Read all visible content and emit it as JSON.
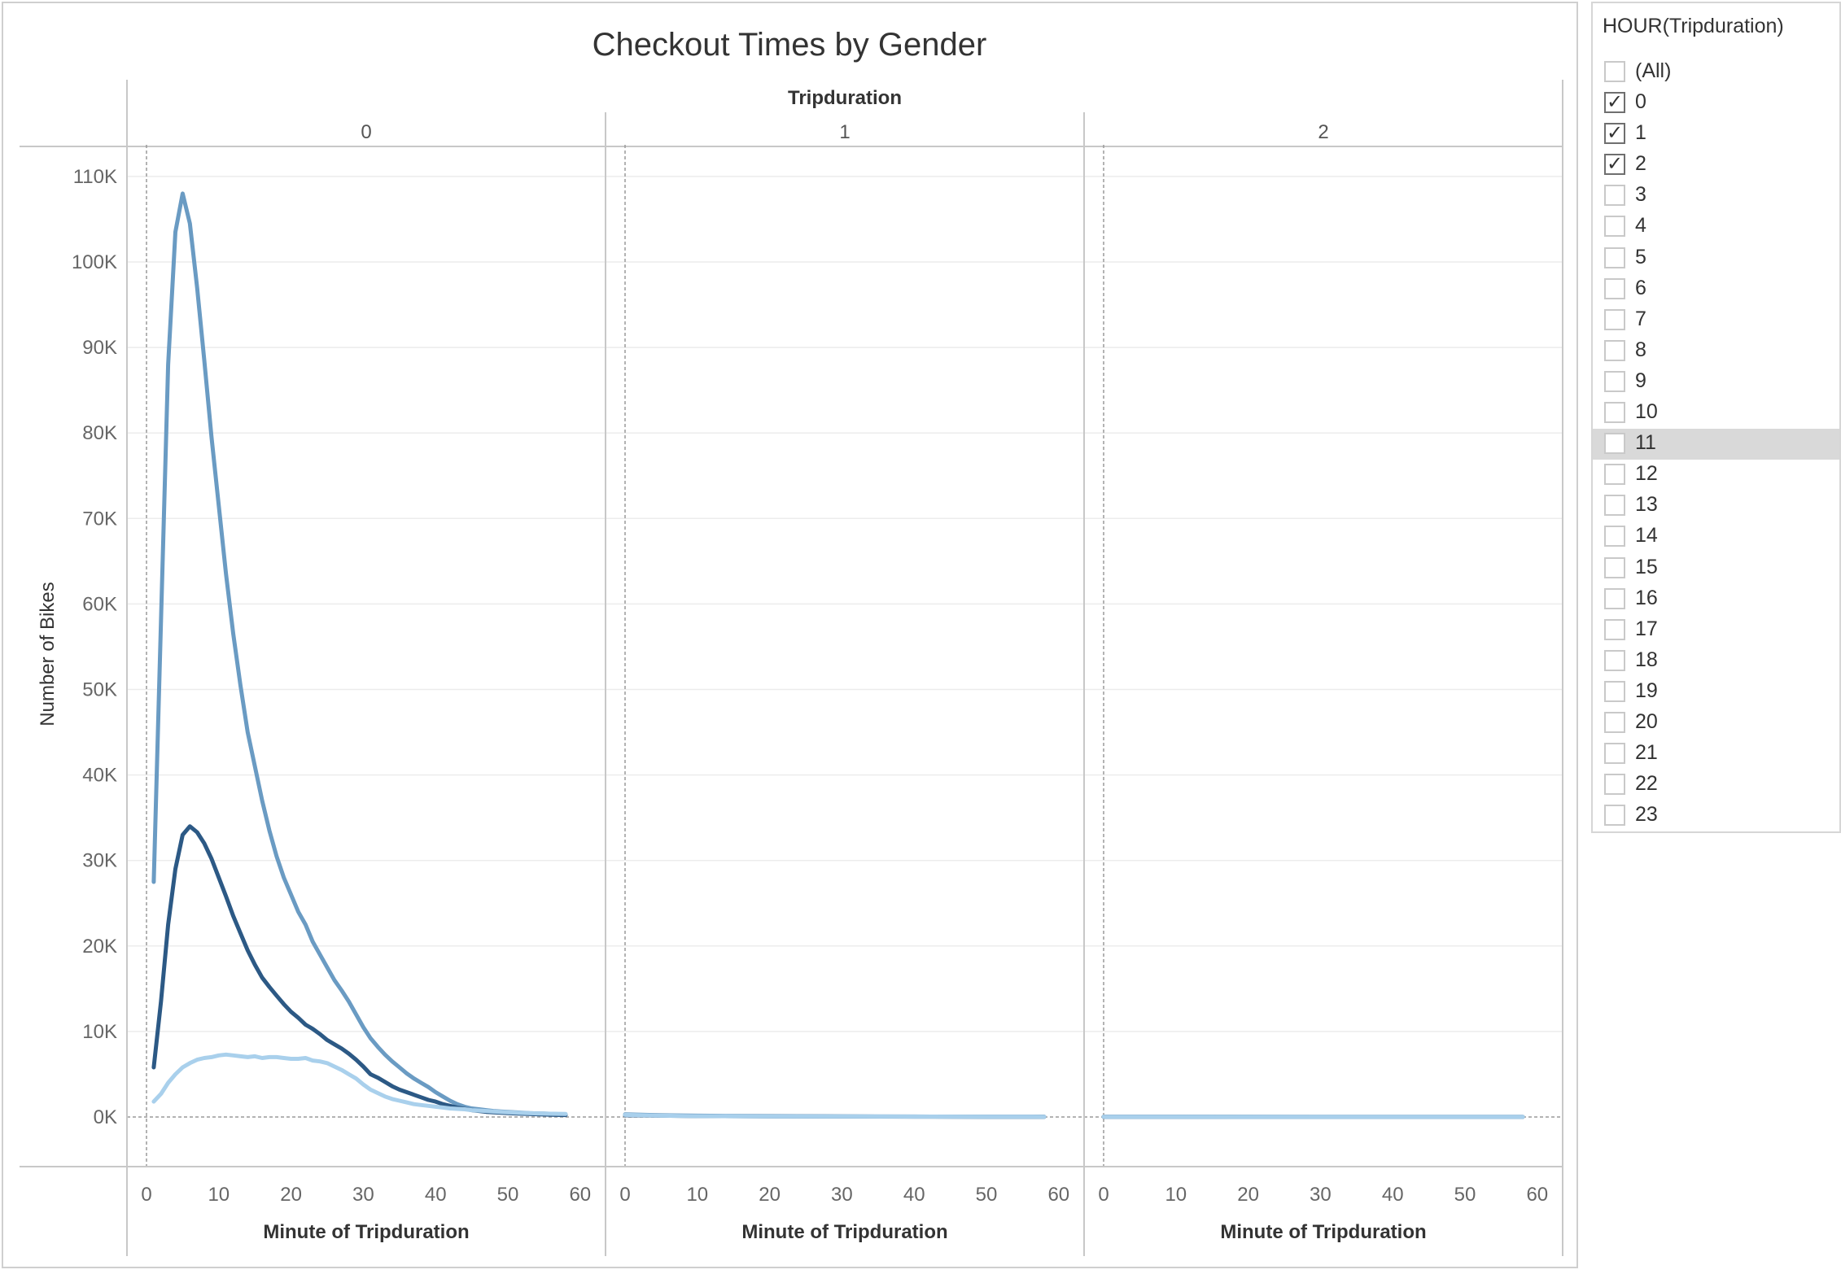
{
  "chart_data": {
    "type": "line",
    "title": "Checkout Times by Gender",
    "column_header": "Tripduration",
    "panels": [
      "0",
      "1",
      "2"
    ],
    "xlabel": "Minute of Tripduration",
    "ylabel": "Number of Bikes",
    "xlim": [
      0,
      60
    ],
    "ylim": [
      0,
      110000
    ],
    "x_ticks": [
      0,
      10,
      20,
      30,
      40,
      50,
      60
    ],
    "y_ticks": [
      0,
      10000,
      20000,
      30000,
      40000,
      50000,
      60000,
      70000,
      80000,
      90000,
      100000,
      110000
    ],
    "y_tick_labels": [
      "0K",
      "10K",
      "20K",
      "30K",
      "40K",
      "50K",
      "60K",
      "70K",
      "80K",
      "90K",
      "100K",
      "110K"
    ],
    "grid": true,
    "series": [
      {
        "color": "#6a9bc3",
        "panels": [
          [
            [
              1,
              27500
            ],
            [
              2,
              58000
            ],
            [
              3,
              88000
            ],
            [
              4,
              103500
            ],
            [
              5,
              108000
            ],
            [
              6,
              104500
            ],
            [
              7,
              97000
            ],
            [
              8,
              88500
            ],
            [
              9,
              79500
            ],
            [
              10,
              71500
            ],
            [
              11,
              63500
            ],
            [
              12,
              56500
            ],
            [
              13,
              50500
            ],
            [
              14,
              45000
            ],
            [
              15,
              41000
            ],
            [
              16,
              37000
            ],
            [
              17,
              33500
            ],
            [
              18,
              30500
            ],
            [
              19,
              28000
            ],
            [
              20,
              26000
            ],
            [
              21,
              24000
            ],
            [
              22,
              22500
            ],
            [
              23,
              20500
            ],
            [
              24,
              19000
            ],
            [
              25,
              17500
            ],
            [
              26,
              16000
            ],
            [
              27,
              14800
            ],
            [
              28,
              13500
            ],
            [
              29,
              12000
            ],
            [
              30,
              10500
            ],
            [
              31,
              9200
            ],
            [
              32,
              8200
            ],
            [
              33,
              7300
            ],
            [
              34,
              6500
            ],
            [
              35,
              5800
            ],
            [
              36,
              5100
            ],
            [
              37,
              4500
            ],
            [
              38,
              4000
            ],
            [
              39,
              3500
            ],
            [
              40,
              2900
            ],
            [
              41,
              2400
            ],
            [
              42,
              1900
            ],
            [
              43,
              1500
            ],
            [
              44,
              1200
            ],
            [
              45,
              1000
            ],
            [
              46,
              900
            ],
            [
              47,
              800
            ],
            [
              48,
              700
            ],
            [
              49,
              650
            ],
            [
              50,
              600
            ],
            [
              51,
              550
            ],
            [
              52,
              500
            ],
            [
              53,
              450
            ],
            [
              54,
              420
            ],
            [
              55,
              400
            ],
            [
              56,
              370
            ],
            [
              57,
              330
            ],
            [
              58,
              300
            ]
          ],
          [
            [
              0,
              300
            ],
            [
              5,
              200
            ],
            [
              10,
              150
            ],
            [
              20,
              100
            ],
            [
              30,
              80
            ],
            [
              40,
              60
            ],
            [
              50,
              40
            ],
            [
              58,
              30
            ]
          ],
          [
            [
              0,
              30
            ],
            [
              10,
              20
            ],
            [
              20,
              15
            ],
            [
              30,
              10
            ],
            [
              40,
              10
            ],
            [
              50,
              10
            ],
            [
              58,
              10
            ]
          ]
        ]
      },
      {
        "color": "#2c5985",
        "panels": [
          [
            [
              1,
              5800
            ],
            [
              2,
              13500
            ],
            [
              3,
              22500
            ],
            [
              4,
              29000
            ],
            [
              5,
              33000
            ],
            [
              6,
              34000
            ],
            [
              7,
              33300
            ],
            [
              8,
              32000
            ],
            [
              9,
              30200
            ],
            [
              10,
              28000
            ],
            [
              11,
              25800
            ],
            [
              12,
              23500
            ],
            [
              13,
              21500
            ],
            [
              14,
              19500
            ],
            [
              15,
              17800
            ],
            [
              16,
              16300
            ],
            [
              17,
              15200
            ],
            [
              18,
              14200
            ],
            [
              19,
              13200
            ],
            [
              20,
              12300
            ],
            [
              21,
              11600
            ],
            [
              22,
              10800
            ],
            [
              23,
              10300
            ],
            [
              24,
              9700
            ],
            [
              25,
              9000
            ],
            [
              26,
              8500
            ],
            [
              27,
              8000
            ],
            [
              28,
              7400
            ],
            [
              29,
              6700
            ],
            [
              30,
              5900
            ],
            [
              31,
              5000
            ],
            [
              32,
              4600
            ],
            [
              33,
              4100
            ],
            [
              34,
              3600
            ],
            [
              35,
              3200
            ],
            [
              36,
              2900
            ],
            [
              37,
              2600
            ],
            [
              38,
              2300
            ],
            [
              39,
              2000
            ],
            [
              40,
              1800
            ],
            [
              41,
              1500
            ],
            [
              42,
              1300
            ],
            [
              43,
              1100
            ],
            [
              44,
              950
            ],
            [
              45,
              800
            ],
            [
              46,
              700
            ],
            [
              47,
              600
            ],
            [
              48,
              550
            ],
            [
              49,
              500
            ],
            [
              50,
              450
            ],
            [
              52,
              380
            ],
            [
              54,
              320
            ],
            [
              56,
              270
            ],
            [
              58,
              230
            ]
          ],
          [
            [
              0,
              200
            ],
            [
              5,
              150
            ],
            [
              10,
              100
            ],
            [
              20,
              80
            ],
            [
              30,
              60
            ],
            [
              40,
              40
            ],
            [
              50,
              30
            ],
            [
              58,
              20
            ]
          ],
          [
            [
              0,
              20
            ],
            [
              10,
              15
            ],
            [
              20,
              10
            ],
            [
              30,
              10
            ],
            [
              40,
              10
            ],
            [
              50,
              5
            ],
            [
              58,
              5
            ]
          ]
        ]
      },
      {
        "color": "#a9d0ec",
        "panels": [
          [
            [
              1,
              1800
            ],
            [
              2,
              2700
            ],
            [
              3,
              4000
            ],
            [
              4,
              5000
            ],
            [
              5,
              5800
            ],
            [
              6,
              6300
            ],
            [
              7,
              6700
            ],
            [
              8,
              6900
            ],
            [
              9,
              7000
            ],
            [
              10,
              7200
            ],
            [
              11,
              7300
            ],
            [
              12,
              7200
            ],
            [
              13,
              7100
            ],
            [
              14,
              7000
            ],
            [
              15,
              7100
            ],
            [
              16,
              6900
            ],
            [
              17,
              7000
            ],
            [
              18,
              7000
            ],
            [
              19,
              6900
            ],
            [
              20,
              6800
            ],
            [
              21,
              6800
            ],
            [
              22,
              6900
            ],
            [
              23,
              6600
            ],
            [
              24,
              6500
            ],
            [
              25,
              6300
            ],
            [
              26,
              5900
            ],
            [
              27,
              5500
            ],
            [
              28,
              5000
            ],
            [
              29,
              4500
            ],
            [
              30,
              3800
            ],
            [
              31,
              3200
            ],
            [
              32,
              2800
            ],
            [
              33,
              2400
            ],
            [
              34,
              2100
            ],
            [
              35,
              1900
            ],
            [
              36,
              1700
            ],
            [
              37,
              1500
            ],
            [
              38,
              1400
            ],
            [
              39,
              1300
            ],
            [
              40,
              1200
            ],
            [
              41,
              1100
            ],
            [
              42,
              1000
            ],
            [
              43,
              950
            ],
            [
              44,
              900
            ],
            [
              45,
              800
            ],
            [
              46,
              750
            ],
            [
              47,
              700
            ],
            [
              48,
              650
            ],
            [
              49,
              600
            ],
            [
              50,
              550
            ],
            [
              52,
              480
            ],
            [
              54,
              420
            ],
            [
              56,
              380
            ],
            [
              58,
              350
            ]
          ],
          [
            [
              0,
              250
            ],
            [
              5,
              150
            ],
            [
              10,
              100
            ],
            [
              20,
              80
            ],
            [
              30,
              60
            ],
            [
              40,
              50
            ],
            [
              50,
              40
            ],
            [
              58,
              30
            ]
          ],
          [
            [
              0,
              20
            ],
            [
              10,
              15
            ],
            [
              20,
              10
            ],
            [
              30,
              10
            ],
            [
              40,
              10
            ],
            [
              50,
              10
            ],
            [
              58,
              10
            ]
          ]
        ]
      }
    ]
  },
  "filter": {
    "title": "HOUR(Tripduration)",
    "items": [
      {
        "label": "(All)",
        "checked": false
      },
      {
        "label": "0",
        "checked": true
      },
      {
        "label": "1",
        "checked": true
      },
      {
        "label": "2",
        "checked": true
      },
      {
        "label": "3",
        "checked": false
      },
      {
        "label": "4",
        "checked": false
      },
      {
        "label": "5",
        "checked": false
      },
      {
        "label": "6",
        "checked": false
      },
      {
        "label": "7",
        "checked": false
      },
      {
        "label": "8",
        "checked": false
      },
      {
        "label": "9",
        "checked": false
      },
      {
        "label": "10",
        "checked": false
      },
      {
        "label": "11",
        "checked": false,
        "highlighted": true
      },
      {
        "label": "12",
        "checked": false
      },
      {
        "label": "13",
        "checked": false
      },
      {
        "label": "14",
        "checked": false
      },
      {
        "label": "15",
        "checked": false
      },
      {
        "label": "16",
        "checked": false
      },
      {
        "label": "17",
        "checked": false
      },
      {
        "label": "18",
        "checked": false
      },
      {
        "label": "19",
        "checked": false
      },
      {
        "label": "20",
        "checked": false
      },
      {
        "label": "21",
        "checked": false
      },
      {
        "label": "22",
        "checked": false
      },
      {
        "label": "23",
        "checked": false
      }
    ]
  }
}
